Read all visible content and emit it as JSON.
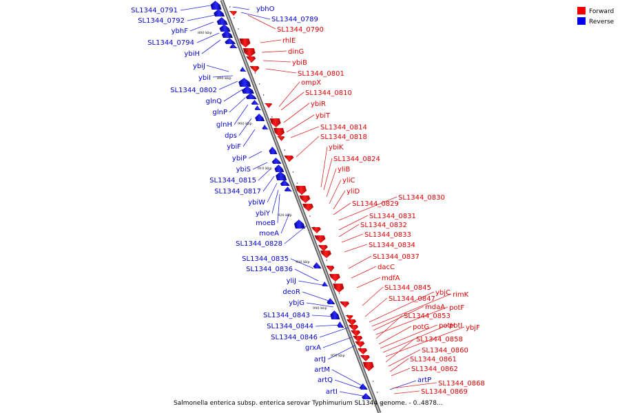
{
  "caption": "Salmonella enterica subsp. enterica serovar Typhimurium SL1344 genome. - 0..4878...",
  "legend": [
    {
      "label": "Forward",
      "color": "#ee0000"
    },
    {
      "label": "Reverse",
      "color": "#0000ee"
    }
  ],
  "ticks": [
    "880 kbp",
    "890 kbp",
    "900 kbp",
    "910 kbp",
    "920 kbp",
    "930 kbp",
    "940 kbp",
    "950 kbp"
  ],
  "reverse_labels": [
    "SL1344_0791",
    "SL1344_0792",
    "ybhF",
    "SL1344_0794",
    "ybiH",
    "ybiJ",
    "ybiI",
    "SL1344_0802",
    "glnQ",
    "glnP",
    "glnH",
    "dps",
    "ybiF",
    "ybiP",
    "ybiS",
    "SL1344_0815",
    "SL1344_0817",
    "ybiW",
    "ybiY",
    "moeB",
    "moeA",
    "SL1344_0828",
    "SL1344_0835",
    "SL1344_0836",
    "yliJ",
    "deoR",
    "ybjG",
    "SL1344_0843",
    "SL1344_0844",
    "SL1344_0846",
    "grxA",
    "artJ",
    "artM",
    "artQ",
    "artI"
  ],
  "reverse_right_labels": [
    "ybhO",
    "SL1344_0789",
    "artP"
  ],
  "forward_labels": [
    "SL1344_0790",
    "rhlE",
    "dinG",
    "ybiB",
    "SL1344_0801",
    "ompX",
    "SL1344_0810",
    "ybiR",
    "ybiT",
    "SL1344_0814",
    "SL1344_0818",
    "ybiK",
    "SL1344_0824",
    "yliB",
    "yliC",
    "yliD",
    "SL1344_0829",
    "SL1344_0830",
    "SL1344_0831",
    "SL1344_0832",
    "SL1344_0833",
    "SL1344_0834",
    "SL1344_0837",
    "dacC",
    "mdfA",
    "SL1344_0845",
    "SL1344_0847",
    "ybjC",
    "rimK",
    "mdaA",
    "potF",
    "SL1344_0853",
    "potG",
    "potH",
    "potI",
    "ybjF",
    "SL1344_0858",
    "SL1344_0860",
    "SL1344_0861",
    "SL1344_0862",
    "SL1344_0868",
    "SL1344_0869"
  ]
}
